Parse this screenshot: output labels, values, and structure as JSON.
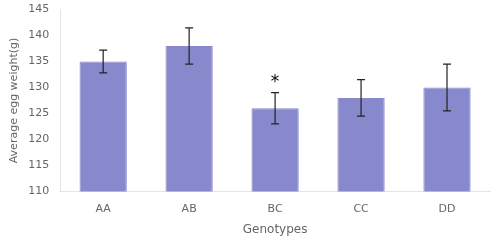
{
  "chart_data": {
    "type": "bar",
    "categories": [
      "AA",
      "AB",
      "BC",
      "CC",
      "DD"
    ],
    "values": [
      135.0,
      138.0,
      126.0,
      128.0,
      130.0
    ],
    "errors": [
      2.2,
      3.5,
      3.0,
      3.5,
      4.5
    ],
    "color": "#8888cc",
    "xlabel": "Genotypes",
    "ylabel": "Average egg weight(g)",
    "ylim": [
      110,
      145
    ],
    "yticks": [
      110,
      115,
      120,
      125,
      130,
      135,
      140,
      145
    ],
    "annotations": [
      {
        "text": "*",
        "category": "BC"
      }
    ],
    "grid": false
  }
}
